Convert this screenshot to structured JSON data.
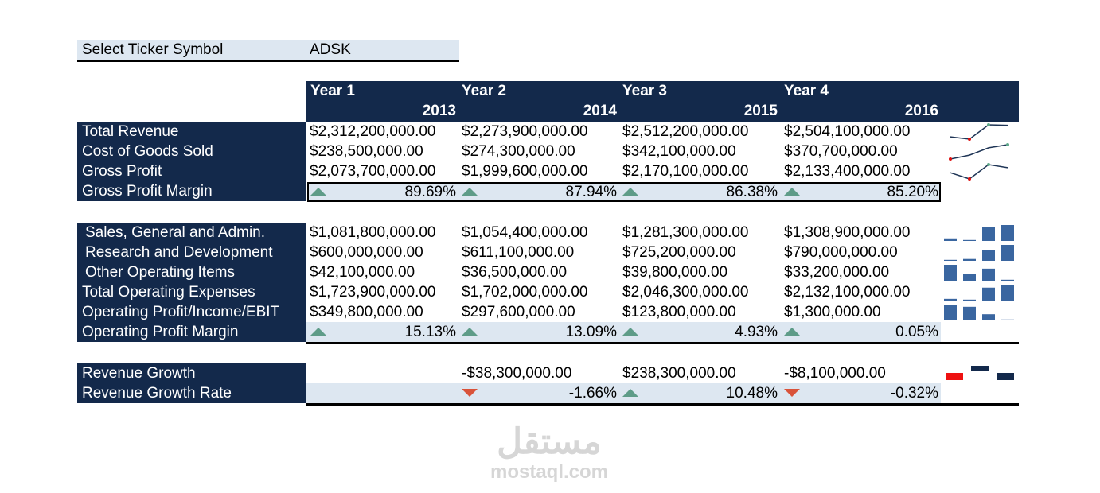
{
  "ticker": {
    "label": "Select Ticker Symbol",
    "value": "ADSK"
  },
  "header": {
    "years": [
      {
        "label": "Year 1",
        "year": "2013"
      },
      {
        "label": "Year 2",
        "year": "2014"
      },
      {
        "label": "Year 3",
        "year": "2015"
      },
      {
        "label": "Year 4",
        "year": "2016"
      }
    ]
  },
  "section1": {
    "rows": [
      {
        "label": "Total Revenue",
        "values": [
          "$2,312,200,000.00",
          "$2,273,900,000.00",
          "$2,512,200,000.00",
          "$2,504,100,000.00"
        ],
        "raw": [
          2312200000,
          2273900000,
          2512200000,
          2504100000
        ]
      },
      {
        "label": "Cost of Goods Sold",
        "values": [
          "$238,500,000.00",
          "$274,300,000.00",
          "$342,100,000.00",
          "$370,700,000.00"
        ],
        "raw": [
          238500000,
          274300000,
          342100000,
          370700000
        ]
      },
      {
        "label": "Gross Profit",
        "values": [
          "$2,073,700,000.00",
          "$1,999,600,000.00",
          "$2,170,100,000.00",
          "$2,133,400,000.00"
        ],
        "raw": [
          2073700000,
          1999600000,
          2170100000,
          2133400000
        ]
      }
    ],
    "margin": {
      "label": "Gross Profit Margin",
      "values": [
        "89.69%",
        "87.94%",
        "86.38%",
        "85.20%"
      ],
      "dirs": [
        "up",
        "up",
        "up",
        "up"
      ]
    }
  },
  "section2": {
    "rows": [
      {
        "label": "Sales, General and Admin.",
        "indent": true,
        "values": [
          "$1,081,800,000.00",
          "$1,054,400,000.00",
          "$1,281,300,000.00",
          "$1,308,900,000.00"
        ],
        "raw": [
          1081800000,
          1054400000,
          1281300000,
          1308900000
        ]
      },
      {
        "label": "Research and Development",
        "indent": true,
        "values": [
          "$600,000,000.00",
          "$611,100,000.00",
          "$725,200,000.00",
          "$790,000,000.00"
        ],
        "raw": [
          600000000,
          611100000,
          725200000,
          790000000
        ]
      },
      {
        "label": "Other Operating Items",
        "indent": true,
        "values": [
          "$42,100,000.00",
          "$36,500,000.00",
          "$39,800,000.00",
          "$33,200,000.00"
        ],
        "raw": [
          42100000,
          36500000,
          39800000,
          33200000
        ]
      },
      {
        "label": "Total Operating Expenses",
        "indent": false,
        "values": [
          "$1,723,900,000.00",
          "$1,702,000,000.00",
          "$2,046,300,000.00",
          "$2,132,100,000.00"
        ],
        "raw": [
          1723900000,
          1702000000,
          2046300000,
          2132100000
        ]
      },
      {
        "label": "Operating Profit/Income/EBIT",
        "indent": false,
        "values": [
          "$349,800,000.00",
          "$297,600,000.00",
          "$123,800,000.00",
          "$1,300,000.00"
        ],
        "raw": [
          349800000,
          297600000,
          123800000,
          1300000
        ]
      }
    ],
    "margin": {
      "label": "Operating Profit Margin",
      "values": [
        "15.13%",
        "13.09%",
        "4.93%",
        "0.05%"
      ],
      "dirs": [
        "up",
        "up",
        "up",
        "up"
      ]
    }
  },
  "section3": {
    "growth": {
      "label": "Revenue Growth",
      "values": [
        "",
        "-$38,300,000.00",
        "$238,300,000.00",
        "-$8,100,000.00"
      ],
      "raw": [
        -38300000,
        238300000,
        -8100000
      ]
    },
    "rate": {
      "label": "Revenue Growth Rate",
      "values": [
        "",
        "-1.66%",
        "10.48%",
        "-0.32%"
      ],
      "dirs": [
        "",
        "down",
        "up",
        "down"
      ]
    }
  },
  "colors": {
    "navy": "#13294b",
    "lightblue": "#dde7f1",
    "up": "#5e9c88",
    "down": "#d9533a",
    "spark_bar": "#3a66a0",
    "spark_neg": "#ee1111",
    "spark_line": "#1f3556",
    "spark_high": "#5ea88a",
    "spark_low": "#dd1111"
  },
  "watermark": {
    "arabic": "مستقل",
    "latin": "mostaql.com"
  }
}
